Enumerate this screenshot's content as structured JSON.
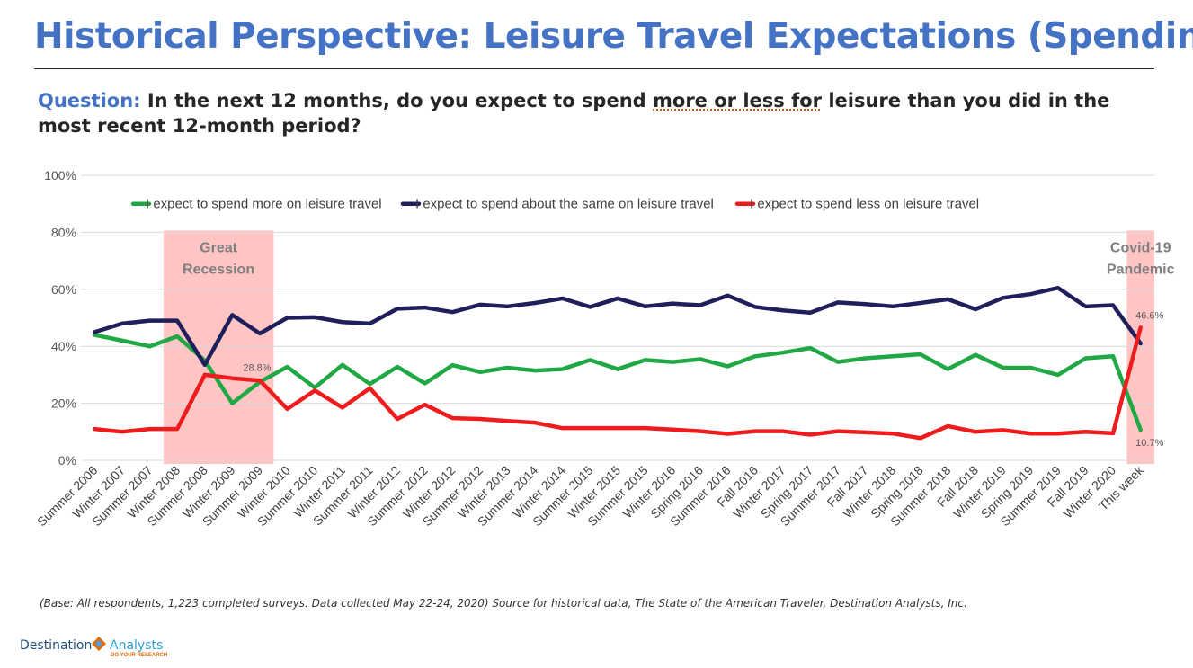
{
  "slide": {
    "title": "Historical Perspective: Leisure Travel Expectations (Spending)",
    "question_label": "Question:",
    "question_pre": " In the next 12 months, do you expect to spend ",
    "question_underline": "more or less for",
    "question_post": " leisure than you did in the most recent 12-month period?",
    "base_note": "(Base: All respondents, 1,223 completed surveys. Data collected May 22-24, 2020) Source for historical data, The State of the American Traveler, Destination Analysts, Inc.",
    "logo_left": "Destination",
    "logo_right": "Analysts",
    "logo_tagline": "DO YOUR RESEARCH"
  },
  "chart_data": {
    "type": "line",
    "categories": [
      "Summer 2006",
      "Winter 2007",
      "Summer 2007",
      "Winter 2008",
      "Summer 2008",
      "Winter 2009",
      "Summer 2009",
      "Winter 2010",
      "Summer 2010",
      "Winter 2011",
      "Summer 2011",
      "Winter 2012",
      "Summer 2012",
      "Winter 2012",
      "Summer 2012",
      "Winter 2013",
      "Summer 2014",
      "Winter 2014",
      "Summer 2015",
      "Winter 2015",
      "Summer 2015",
      "Winter 2016",
      "Spring 2016",
      "Summer 2016",
      "Fall 2016",
      "Winter 2017",
      "Spring 2017",
      "Summer 2017",
      "Fall 2017",
      "Winter 2018",
      "Spring 2018",
      "Summer 2018",
      "Fall 2018",
      "Winter 2019",
      "Spring 2019",
      "Summer 2019",
      "Fall 2019",
      "Winter 2020",
      "This week"
    ],
    "ylim": [
      0,
      100
    ],
    "yticks": [
      "0%",
      "20%",
      "40%",
      "60%",
      "80%",
      "100%"
    ],
    "series": [
      {
        "name": "I expect to spend more on leisure travel",
        "color": "#1fa844",
        "values": [
          44,
          42,
          40,
          43.5,
          35,
          20,
          27.5,
          32.8,
          25.5,
          33.5,
          26.8,
          32.8,
          27,
          33.4,
          31,
          32.5,
          31.5,
          32,
          35.2,
          32,
          35.2,
          34.5,
          35.5,
          33,
          36.5,
          37.8,
          39.4,
          34.5,
          35.8,
          36.5,
          37.2,
          32,
          37,
          32.5,
          32.5,
          30,
          35.8,
          36.5,
          10.7
        ]
      },
      {
        "name": "I expect to spend about the same on leisure travel",
        "color": "#1f1f5c",
        "values": [
          45,
          48,
          49,
          49,
          33.5,
          51,
          44.5,
          50,
          50.2,
          48.5,
          48,
          53.2,
          53.6,
          52,
          54.6,
          54,
          55.2,
          56.8,
          53.8,
          56.8,
          54,
          55,
          54.4,
          57.8,
          53.8,
          52.6,
          51.8,
          55.4,
          54.8,
          54,
          55.2,
          56.5,
          53,
          57,
          58.3,
          60.5,
          54,
          54.4,
          41
        ]
      },
      {
        "name": "I expect to spend less on leisure travel",
        "color": "#ee1c1c",
        "values": [
          11,
          10,
          11,
          11,
          30,
          28.8,
          28,
          18,
          24.5,
          18.5,
          25.3,
          14.5,
          19.5,
          14.8,
          14.5,
          13.8,
          13.2,
          11.3,
          11.3,
          11.3,
          11.3,
          10.8,
          10.2,
          9.3,
          10.2,
          10.2,
          9,
          10.2,
          9.8,
          9.4,
          7.8,
          12,
          10,
          10.6,
          9.4,
          9.4,
          10,
          9.5,
          46.6
        ]
      }
    ],
    "data_labels": [
      {
        "series": 2,
        "index": 5,
        "text": "28.8%"
      },
      {
        "series": 2,
        "index": 38,
        "text": "46.6%"
      },
      {
        "series": 0,
        "index": 38,
        "text": "10.7%"
      }
    ],
    "shaded_regions": [
      {
        "label_line1": "Great",
        "label_line2": "Recession",
        "from_index": 3,
        "to_index": 6
      },
      {
        "label_line1": "Covid-19",
        "label_line2": "Pandemic",
        "from_index": 38,
        "to_index": 38
      }
    ],
    "legend_position": "top",
    "grid": true,
    "shade_color": "#ffc4c4"
  }
}
